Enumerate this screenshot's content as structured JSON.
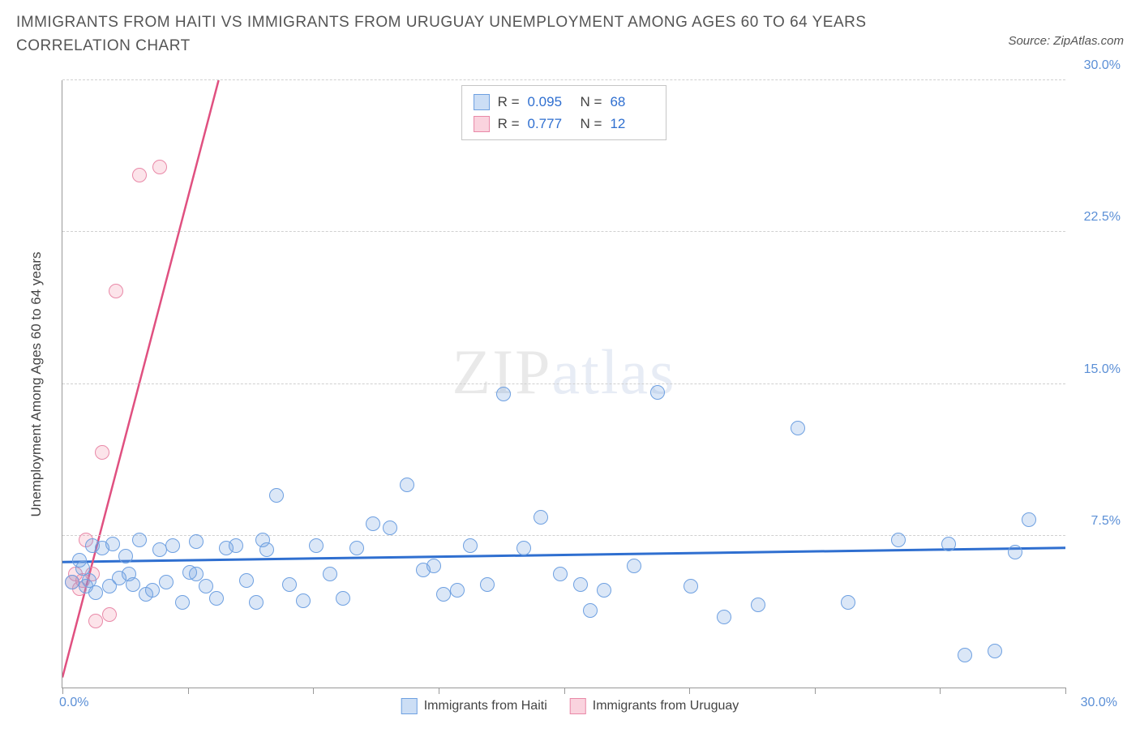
{
  "title": "IMMIGRANTS FROM HAITI VS IMMIGRANTS FROM URUGUAY UNEMPLOYMENT AMONG AGES 60 TO 64 YEARS CORRELATION CHART",
  "source": "Source: ZipAtlas.com",
  "chart": {
    "type": "scatter",
    "y_axis_title": "Unemployment Among Ages 60 to 64 years",
    "xlim": [
      0,
      30
    ],
    "ylim": [
      0,
      30
    ],
    "x_ticks": [
      0,
      3.75,
      7.5,
      11.25,
      15,
      18.75,
      22.5,
      26.25,
      30
    ],
    "y_ticks": [
      7.5,
      15,
      22.5,
      30
    ],
    "y_tick_labels": [
      "7.5%",
      "15.0%",
      "22.5%",
      "30.0%"
    ],
    "x_min_label": "0.0%",
    "x_max_label": "30.0%",
    "grid_color": "#d8d8d8",
    "background_color": "#ffffff",
    "marker_radius": 9,
    "series": {
      "blue": {
        "label": "Immigrants from Haiti",
        "color_fill": "rgba(110,160,225,0.25)",
        "color_stroke": "#6ea0e1",
        "trend_color": "#2f6fd0",
        "trend_width": 3,
        "trend": {
          "y_at_x0": 6.2,
          "y_at_x30": 6.9
        },
        "R": "0.095",
        "N": "68",
        "points": [
          [
            0.3,
            5.2
          ],
          [
            0.6,
            5.9
          ],
          [
            0.8,
            5.3
          ],
          [
            0.9,
            7.0
          ],
          [
            1.0,
            4.7
          ],
          [
            1.2,
            6.9
          ],
          [
            1.4,
            5.0
          ],
          [
            1.5,
            7.1
          ],
          [
            1.7,
            5.4
          ],
          [
            1.9,
            6.5
          ],
          [
            2.1,
            5.1
          ],
          [
            2.3,
            7.3
          ],
          [
            2.5,
            4.6
          ],
          [
            2.7,
            4.8
          ],
          [
            2.9,
            6.8
          ],
          [
            3.1,
            5.2
          ],
          [
            3.3,
            7.0
          ],
          [
            3.6,
            4.2
          ],
          [
            3.8,
            5.7
          ],
          [
            4.0,
            7.2
          ],
          [
            4.3,
            5.0
          ],
          [
            4.6,
            4.4
          ],
          [
            4.9,
            6.9
          ],
          [
            5.2,
            7.0
          ],
          [
            5.5,
            5.3
          ],
          [
            5.8,
            4.2
          ],
          [
            6.1,
            6.8
          ],
          [
            6.4,
            9.5
          ],
          [
            6.8,
            5.1
          ],
          [
            7.2,
            4.3
          ],
          [
            7.6,
            7.0
          ],
          [
            8.0,
            5.6
          ],
          [
            8.4,
            4.4
          ],
          [
            8.8,
            6.9
          ],
          [
            9.3,
            8.1
          ],
          [
            9.8,
            7.9
          ],
          [
            10.3,
            10.0
          ],
          [
            10.8,
            5.8
          ],
          [
            11.1,
            6.0
          ],
          [
            11.4,
            4.6
          ],
          [
            11.8,
            4.8
          ],
          [
            12.2,
            7.0
          ],
          [
            12.7,
            5.1
          ],
          [
            13.2,
            14.5
          ],
          [
            13.8,
            6.9
          ],
          [
            14.3,
            8.4
          ],
          [
            14.9,
            5.6
          ],
          [
            15.5,
            5.1
          ],
          [
            15.8,
            3.8
          ],
          [
            16.2,
            4.8
          ],
          [
            17.1,
            6.0
          ],
          [
            17.8,
            14.6
          ],
          [
            18.8,
            5.0
          ],
          [
            19.8,
            3.5
          ],
          [
            20.8,
            4.1
          ],
          [
            22.0,
            12.8
          ],
          [
            23.5,
            4.2
          ],
          [
            26.5,
            7.1
          ],
          [
            27.0,
            1.6
          ],
          [
            27.9,
            1.8
          ],
          [
            28.5,
            6.7
          ],
          [
            28.9,
            8.3
          ],
          [
            25.0,
            7.3
          ],
          [
            6.0,
            7.3
          ],
          [
            4.0,
            5.6
          ],
          [
            2.0,
            5.6
          ],
          [
            0.5,
            6.3
          ],
          [
            0.7,
            5.0
          ]
        ]
      },
      "pink": {
        "label": "Immigrants from Uruguay",
        "color_fill": "rgba(240,130,160,0.22)",
        "color_stroke": "#e989a8",
        "trend_color": "#e05080",
        "trend_width": 2.5,
        "trend": {
          "y_at_x0": 0.5,
          "y_at_x30": 190
        },
        "R": "0.777",
        "N": "12",
        "points": [
          [
            0.3,
            5.2
          ],
          [
            0.4,
            5.6
          ],
          [
            0.5,
            4.9
          ],
          [
            0.6,
            5.3
          ],
          [
            0.7,
            7.3
          ],
          [
            0.9,
            5.6
          ],
          [
            1.0,
            3.3
          ],
          [
            1.2,
            11.6
          ],
          [
            1.4,
            3.6
          ],
          [
            1.6,
            19.6
          ],
          [
            2.3,
            25.3
          ],
          [
            2.9,
            25.7
          ]
        ]
      }
    },
    "watermark": {
      "text_a": "ZIP",
      "text_b": "atlas"
    },
    "stats_box": {
      "rows": [
        {
          "swatch": "blue",
          "R_label": "R =",
          "R": "0.095",
          "N_label": "N =",
          "N": "68"
        },
        {
          "swatch": "pink",
          "R_label": "R =",
          "R": "0.777",
          "N_label": "N =",
          "N": "12"
        }
      ]
    }
  }
}
